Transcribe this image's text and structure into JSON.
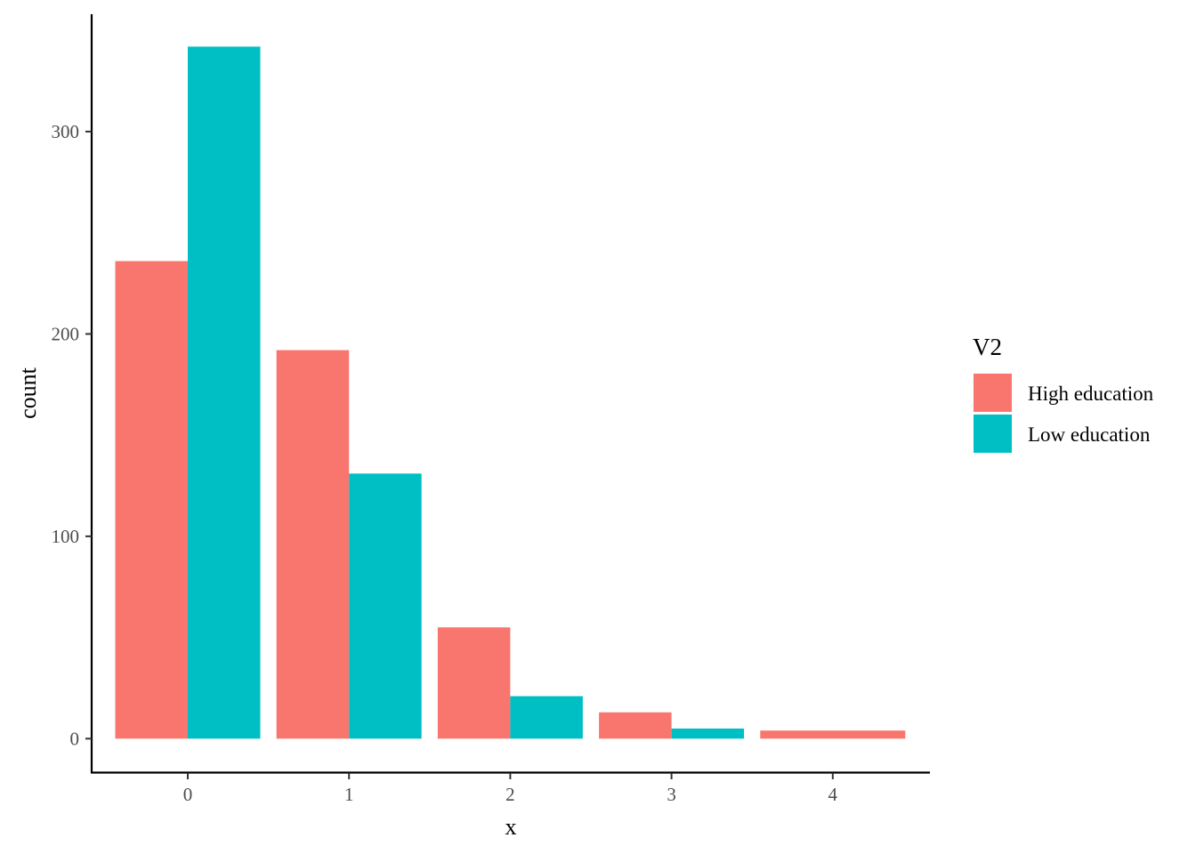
{
  "chart_data": {
    "type": "bar",
    "xlabel": "x",
    "ylabel": "count",
    "categories": [
      "0",
      "1",
      "2",
      "3",
      "4"
    ],
    "series": [
      {
        "name": "High education",
        "color": "#F8766D",
        "values": [
          236,
          192,
          55,
          13,
          4
        ]
      },
      {
        "name": "Low education",
        "color": "#00BFC4",
        "values": [
          342,
          131,
          21,
          5,
          0
        ]
      }
    ],
    "yticks": [
      0,
      100,
      200,
      300
    ],
    "ylim": [
      -17,
      358
    ],
    "grid": false,
    "legend": {
      "title": "V2",
      "placement": "right",
      "entries": [
        "High education",
        "Low education"
      ]
    }
  }
}
